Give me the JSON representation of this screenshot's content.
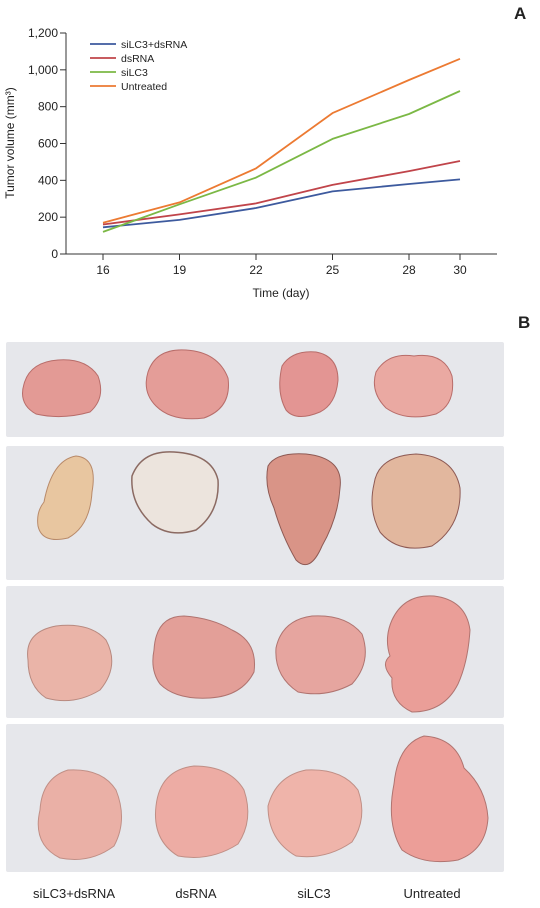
{
  "panel_letters": {
    "a": "A",
    "b": "B"
  },
  "chart_data": {
    "type": "line",
    "xlabel": "Time (day)",
    "ylabel": "Tumor volume (mm³)",
    "x": [
      16,
      19,
      22,
      25,
      28,
      30
    ],
    "ylim": [
      0,
      1200
    ],
    "yticks": [
      0,
      200,
      400,
      600,
      800,
      1000,
      1200
    ],
    "ytick_labels": [
      "0",
      "200",
      "400",
      "600",
      "800",
      "1,000",
      "1,200"
    ],
    "legend_position": "top-left",
    "grid": false,
    "series": [
      {
        "name": "siLC3+dsRNA",
        "color": "#3d5a9e",
        "values": [
          145,
          185,
          250,
          340,
          380,
          405
        ]
      },
      {
        "name": "dsRNA",
        "color": "#c0444a",
        "values": [
          160,
          215,
          275,
          375,
          450,
          505
        ]
      },
      {
        "name": "siLC3",
        "color": "#7bb845",
        "values": [
          120,
          270,
          415,
          625,
          760,
          885
        ]
      },
      {
        "name": "Untreated",
        "color": "#ec7a32",
        "values": [
          170,
          280,
          465,
          765,
          945,
          1060
        ]
      }
    ]
  },
  "photo_panel": {
    "background_color": "#e6e7eb",
    "tissue_color": "#e9a6a0",
    "group_labels": [
      "siLC3+dsRNA",
      "dsRNA",
      "siLC3",
      "Untreated"
    ]
  }
}
